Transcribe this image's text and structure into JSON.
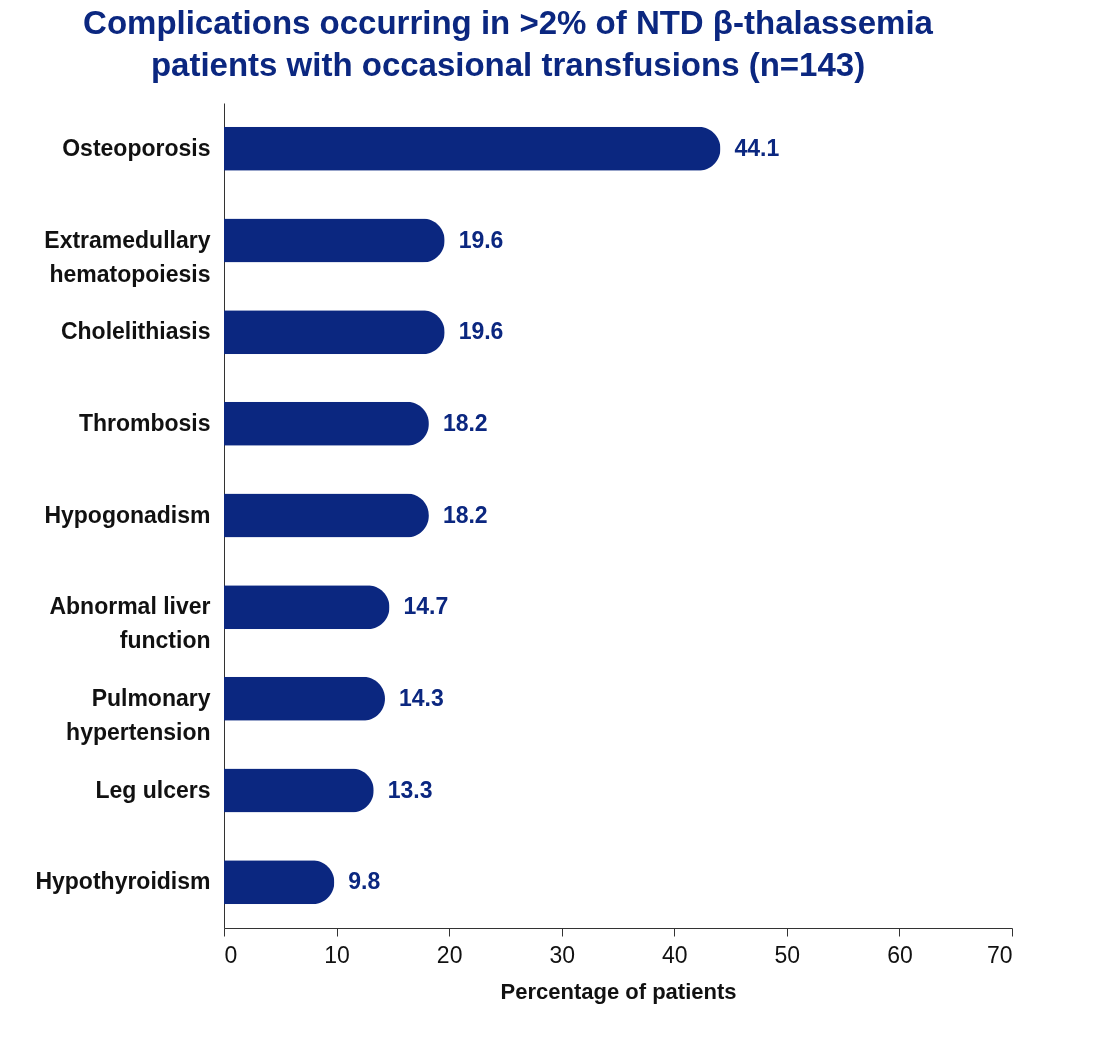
{
  "chart_data": {
    "type": "bar",
    "orientation": "horizontal",
    "title": "Complications occurring in >2% of NTD β-thalassemia patients with occasional transfusions (n=143)",
    "xlabel": "Percentage of patients",
    "categories": [
      "Osteoporosis",
      "Extramedullary hematopoiesis",
      "Cholelithiasis",
      "Thrombosis",
      "Hypogonadism",
      "Abnormal liver function",
      "Pulmonary hypertension",
      "Leg ulcers",
      "Hypothyroidism"
    ],
    "values": [
      44.1,
      19.6,
      19.6,
      18.2,
      18.2,
      14.7,
      14.3,
      13.3,
      9.8
    ],
    "color": "#0b2780",
    "xlim": [
      0,
      70
    ],
    "xticks": [
      0,
      10,
      20,
      30,
      40,
      50,
      60,
      70
    ],
    "data_labels": true,
    "grid": false
  }
}
